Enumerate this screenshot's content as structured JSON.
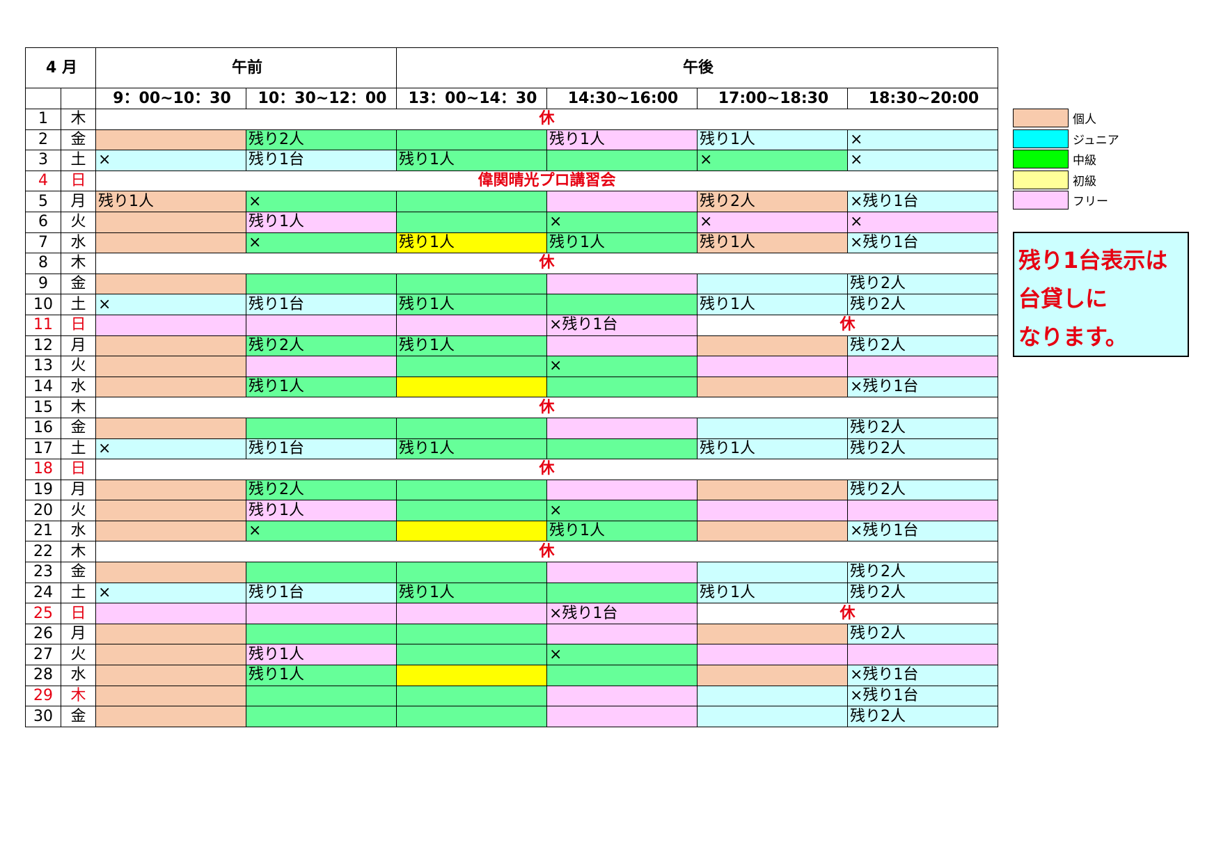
{
  "header": {
    "month": "4 月",
    "morning": "午前",
    "afternoon": "午後",
    "slots": [
      "9：00~10：30",
      "10：30~12：00",
      "13：00~14：30",
      "14:30~16:00",
      "17:00~18:30",
      "18:30~20:00"
    ]
  },
  "days": [
    {
      "d": "1",
      "w": "木",
      "red": false,
      "closed": "休"
    },
    {
      "d": "2",
      "w": "金",
      "red": false,
      "cells": [
        [
          "k",
          ""
        ],
        [
          "c",
          "残り2人"
        ],
        [
          "c",
          ""
        ],
        [
          "f",
          "残り1人"
        ],
        [
          "j",
          "残り1人"
        ],
        [
          "j",
          "×"
        ]
      ]
    },
    {
      "d": "3",
      "w": "土",
      "red": false,
      "cells": [
        [
          "j",
          "×"
        ],
        [
          "j",
          "残り1台"
        ],
        [
          "c",
          "残り1人"
        ],
        [
          "c",
          ""
        ],
        [
          "c",
          "×"
        ],
        [
          "j",
          "×"
        ]
      ]
    },
    {
      "d": "4",
      "w": "日",
      "red": true,
      "closed": "偉関晴光プロ講習会"
    },
    {
      "d": "5",
      "w": "月",
      "red": false,
      "cells": [
        [
          "k",
          "残り1人"
        ],
        [
          "c",
          "×"
        ],
        [
          "c",
          ""
        ],
        [
          "f",
          ""
        ],
        [
          "k",
          "残り2人"
        ],
        [
          "j",
          "×残り1台"
        ]
      ]
    },
    {
      "d": "6",
      "w": "火",
      "red": false,
      "cells": [
        [
          "k",
          ""
        ],
        [
          "f",
          "残り1人"
        ],
        [
          "c",
          ""
        ],
        [
          "c",
          "×"
        ],
        [
          "f",
          "×"
        ],
        [
          "f",
          "×"
        ]
      ]
    },
    {
      "d": "7",
      "w": "水",
      "red": false,
      "cells": [
        [
          "k",
          ""
        ],
        [
          "c",
          "×"
        ],
        [
          "s",
          "残り1人"
        ],
        [
          "c",
          "残り1人"
        ],
        [
          "k",
          "残り1人"
        ],
        [
          "j",
          "×残り1台"
        ]
      ]
    },
    {
      "d": "8",
      "w": "木",
      "red": false,
      "closed": "休"
    },
    {
      "d": "9",
      "w": "金",
      "red": false,
      "cells": [
        [
          "k",
          ""
        ],
        [
          "c",
          ""
        ],
        [
          "c",
          ""
        ],
        [
          "f",
          ""
        ],
        [
          "j",
          ""
        ],
        [
          "j",
          "残り2人"
        ]
      ]
    },
    {
      "d": "10",
      "w": "土",
      "red": false,
      "cells": [
        [
          "j",
          "×"
        ],
        [
          "j",
          "残り1台"
        ],
        [
          "c",
          "残り1人"
        ],
        [
          "c",
          ""
        ],
        [
          "j",
          "残り1人"
        ],
        [
          "j",
          "残り2人"
        ]
      ]
    },
    {
      "d": "11",
      "w": "日",
      "red": true,
      "cells": [
        [
          "f",
          ""
        ],
        [
          "f",
          ""
        ],
        [
          "f",
          ""
        ],
        [
          "f",
          "×残り1台"
        ]
      ],
      "closed_tail": "休"
    },
    {
      "d": "12",
      "w": "月",
      "red": false,
      "cells": [
        [
          "k",
          ""
        ],
        [
          "c",
          "残り2人"
        ],
        [
          "c",
          "残り1人"
        ],
        [
          "f",
          ""
        ],
        [
          "k",
          ""
        ],
        [
          "j",
          "残り2人"
        ]
      ]
    },
    {
      "d": "13",
      "w": "火",
      "red": false,
      "cells": [
        [
          "k",
          ""
        ],
        [
          "f",
          ""
        ],
        [
          "c",
          ""
        ],
        [
          "c",
          "×"
        ],
        [
          "f",
          ""
        ],
        [
          "f",
          ""
        ]
      ]
    },
    {
      "d": "14",
      "w": "水",
      "red": false,
      "cells": [
        [
          "k",
          ""
        ],
        [
          "c",
          "残り1人"
        ],
        [
          "s",
          ""
        ],
        [
          "c",
          ""
        ],
        [
          "k",
          ""
        ],
        [
          "j",
          "×残り1台"
        ]
      ]
    },
    {
      "d": "15",
      "w": "木",
      "red": false,
      "closed": "休"
    },
    {
      "d": "16",
      "w": "金",
      "red": false,
      "cells": [
        [
          "k",
          ""
        ],
        [
          "c",
          ""
        ],
        [
          "c",
          ""
        ],
        [
          "f",
          ""
        ],
        [
          "j",
          ""
        ],
        [
          "j",
          "残り2人"
        ]
      ]
    },
    {
      "d": "17",
      "w": "土",
      "red": false,
      "cells": [
        [
          "j",
          "×"
        ],
        [
          "j",
          "残り1台"
        ],
        [
          "c",
          "残り1人"
        ],
        [
          "c",
          ""
        ],
        [
          "j",
          "残り1人"
        ],
        [
          "j",
          "残り2人"
        ]
      ]
    },
    {
      "d": "18",
      "w": "日",
      "red": true,
      "closed": "休"
    },
    {
      "d": "19",
      "w": "月",
      "red": false,
      "cells": [
        [
          "k",
          ""
        ],
        [
          "c",
          "残り2人"
        ],
        [
          "c",
          ""
        ],
        [
          "f",
          ""
        ],
        [
          "k",
          ""
        ],
        [
          "j",
          "残り2人"
        ]
      ]
    },
    {
      "d": "20",
      "w": "火",
      "red": false,
      "cells": [
        [
          "k",
          ""
        ],
        [
          "f",
          "残り1人"
        ],
        [
          "c",
          ""
        ],
        [
          "c",
          "×"
        ],
        [
          "f",
          ""
        ],
        [
          "f",
          ""
        ]
      ]
    },
    {
      "d": "21",
      "w": "水",
      "red": false,
      "cells": [
        [
          "k",
          ""
        ],
        [
          "c",
          "×"
        ],
        [
          "s",
          ""
        ],
        [
          "c",
          "残り1人"
        ],
        [
          "k",
          ""
        ],
        [
          "j",
          "×残り1台"
        ]
      ]
    },
    {
      "d": "22",
      "w": "木",
      "red": false,
      "closed": "休"
    },
    {
      "d": "23",
      "w": "金",
      "red": false,
      "cells": [
        [
          "k",
          ""
        ],
        [
          "c",
          ""
        ],
        [
          "c",
          ""
        ],
        [
          "f",
          ""
        ],
        [
          "j",
          ""
        ],
        [
          "j",
          "残り2人"
        ]
      ]
    },
    {
      "d": "24",
      "w": "土",
      "red": false,
      "cells": [
        [
          "j",
          "×"
        ],
        [
          "j",
          "残り1台"
        ],
        [
          "c",
          "残り1人"
        ],
        [
          "c",
          ""
        ],
        [
          "j",
          "残り1人"
        ],
        [
          "j",
          "残り2人"
        ]
      ]
    },
    {
      "d": "25",
      "w": "日",
      "red": true,
      "cells": [
        [
          "f",
          ""
        ],
        [
          "f",
          ""
        ],
        [
          "f",
          ""
        ],
        [
          "f",
          "×残り1台"
        ]
      ],
      "closed_tail": "休"
    },
    {
      "d": "26",
      "w": "月",
      "red": false,
      "cells": [
        [
          "k",
          ""
        ],
        [
          "c",
          ""
        ],
        [
          "c",
          ""
        ],
        [
          "f",
          ""
        ],
        [
          "k",
          ""
        ],
        [
          "j",
          "残り2人"
        ]
      ]
    },
    {
      "d": "27",
      "w": "火",
      "red": false,
      "cells": [
        [
          "k",
          ""
        ],
        [
          "f",
          "残り1人"
        ],
        [
          "c",
          ""
        ],
        [
          "c",
          "×"
        ],
        [
          "f",
          ""
        ],
        [
          "f",
          ""
        ]
      ]
    },
    {
      "d": "28",
      "w": "水",
      "red": false,
      "cells": [
        [
          "k",
          ""
        ],
        [
          "c",
          "残り1人"
        ],
        [
          "s",
          ""
        ],
        [
          "c",
          ""
        ],
        [
          "k",
          ""
        ],
        [
          "j",
          "×残り1台"
        ]
      ]
    },
    {
      "d": "29",
      "w": "木",
      "red": true,
      "cells": [
        [
          "k",
          ""
        ],
        [
          "c",
          ""
        ],
        [
          "c",
          ""
        ],
        [
          "f",
          ""
        ],
        [
          "j",
          ""
        ],
        [
          "j",
          "×残り1台"
        ]
      ]
    },
    {
      "d": "30",
      "w": "金",
      "red": false,
      "cells": [
        [
          "k",
          ""
        ],
        [
          "c",
          ""
        ],
        [
          "c",
          ""
        ],
        [
          "f",
          ""
        ],
        [
          "j",
          ""
        ],
        [
          "j",
          "残り2人"
        ]
      ]
    }
  ],
  "legend": [
    {
      "key": "k",
      "label": "個人",
      "color": "#f8cbad"
    },
    {
      "key": "j",
      "label": "ジュニア",
      "color": "#00ffff"
    },
    {
      "key": "c",
      "label": "中級",
      "color": "#00ff00"
    },
    {
      "key": "s",
      "label": "初級",
      "color": "#ffff99"
    },
    {
      "key": "f",
      "label": "フリー",
      "color": "#ffccff"
    }
  ],
  "note": {
    "lines": [
      "残り1台表示は",
      "台貸しに",
      "なります。"
    ]
  }
}
